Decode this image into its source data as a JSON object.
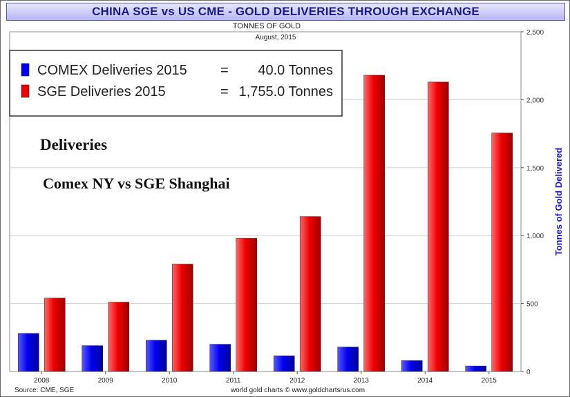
{
  "header": {
    "title": "CHINA SGE vs US CME - GOLD DELIVERIES THROUGH EXCHANGE",
    "subtitle": "TONNES OF GOLD",
    "date": "August, 2015"
  },
  "legend": {
    "items": [
      {
        "label": "COMEX Deliveries 2015",
        "eq": "=",
        "value": "40.0 Tonnes",
        "color": "#0000ee"
      },
      {
        "label": "SGE Deliveries 2015",
        "eq": "=",
        "value": "1,755.0 Tonnes",
        "color": "#ee0000"
      }
    ]
  },
  "annotations": {
    "line1": "Deliveries",
    "line2": "Comex NY vs SGE Shanghai"
  },
  "footer": {
    "source": "Source: CME, SGE",
    "credit": "world gold charts © www.goldchartsrus.com"
  },
  "chart_data": {
    "type": "bar",
    "categories": [
      "2008",
      "2009",
      "2010",
      "2011",
      "2012",
      "2013",
      "2014",
      "2015"
    ],
    "series": [
      {
        "name": "COMEX Deliveries",
        "color": "#0000ee",
        "values": [
          280,
          190,
          230,
          200,
          115,
          180,
          80,
          40
        ]
      },
      {
        "name": "SGE Deliveries",
        "color": "#ee0000",
        "values": [
          540,
          510,
          790,
          980,
          1140,
          2180,
          2130,
          1755
        ]
      }
    ],
    "ylabel": "Tonnes of Gold Delivered",
    "ylim": [
      0,
      2500
    ],
    "yticks": [
      0,
      500,
      1000,
      1500,
      2000,
      2500
    ],
    "ytick_labels": [
      "0",
      "500",
      "1,000",
      "1,500",
      "2,000",
      "2,500"
    ],
    "y_axis_position": "right",
    "grid": true,
    "legend_position": "top-left"
  }
}
